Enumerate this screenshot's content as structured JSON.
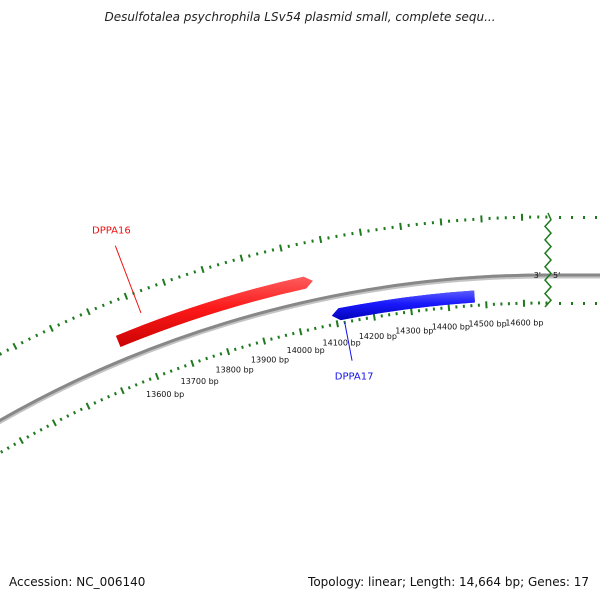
{
  "title": "Desulfotalea psychrophila LSv54 plasmid small, complete sequ...",
  "footer": {
    "accession": "Accession: NC_006140",
    "summary": "Topology: linear; Length: 14,664 bp; Genes: 17"
  },
  "sequence": {
    "length_bp": 14664,
    "strand_end_labels": [
      "3'",
      "5'"
    ]
  },
  "scale": {
    "ticks": [
      {
        "bp": 13600,
        "label": "13600 bp"
      },
      {
        "bp": 13700,
        "label": "13700 bp"
      },
      {
        "bp": 13800,
        "label": "13800 bp"
      },
      {
        "bp": 13900,
        "label": "13900 bp"
      },
      {
        "bp": 14000,
        "label": "14000 bp"
      },
      {
        "bp": 14100,
        "label": "14100 bp"
      },
      {
        "bp": 14200,
        "label": "14200 bp"
      },
      {
        "bp": 14300,
        "label": "14300 bp"
      },
      {
        "bp": 14400,
        "label": "14400 bp"
      },
      {
        "bp": 14500,
        "label": "14500 bp"
      },
      {
        "bp": 14600,
        "label": "14600 bp"
      }
    ]
  },
  "genes": [
    {
      "name": "DPPA16",
      "start_bp": 13540,
      "end_bp": 14060,
      "strand": "forward",
      "color": "#ee1111"
    },
    {
      "name": "DPPA17",
      "start_bp": 14090,
      "end_bp": 14470,
      "strand": "reverse",
      "color": "#1111ee"
    }
  ],
  "colors": {
    "backbone": "#888888",
    "tick_marks": "#1f7a1f",
    "end_marker": "#1f7a1f"
  }
}
